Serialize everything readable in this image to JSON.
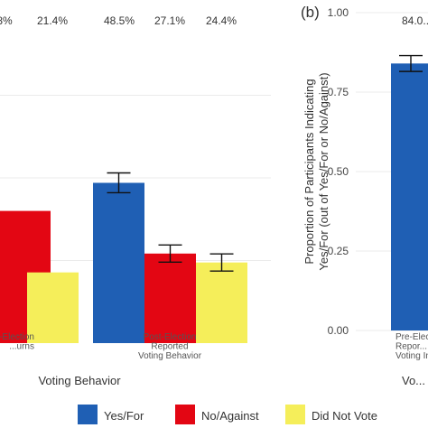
{
  "panel_b_tag": "(b)",
  "chart_data": [
    {
      "type": "bar",
      "panel": "a",
      "xlabel": "Voting Behavior",
      "ylabel": "",
      "ylim": [
        0,
        1
      ],
      "groups": [
        {
          "label_lines": [
            "...-Election",
            "...urns"
          ],
          "top_labels": [
            "...8%",
            "21.4%"
          ],
          "bars": [
            {
              "series": "No/Against",
              "value": 0.4
            },
            {
              "series": "Did Not Vote",
              "value": 0.214
            }
          ]
        },
        {
          "label_lines": [
            "Post-Election",
            "Reported",
            "Voting Behavior"
          ],
          "top_labels": [
            "48.5%",
            "27.1%",
            "24.4%"
          ],
          "bars": [
            {
              "series": "Yes/For",
              "value": 0.485,
              "err_low": 0.455,
              "err_high": 0.515
            },
            {
              "series": "No/Against",
              "value": 0.271,
              "err_low": 0.245,
              "err_high": 0.297
            },
            {
              "series": "Did Not Vote",
              "value": 0.244,
              "err_low": 0.218,
              "err_high": 0.27
            }
          ]
        }
      ]
    },
    {
      "type": "bar",
      "panel": "b",
      "ylabel_lines": [
        "Proportion of Participants Indicating",
        "Yes/For (out of Yes/For or No/Against)"
      ],
      "xlabel": "Vo...",
      "ylim": [
        0,
        1
      ],
      "yticks": [
        "0.00",
        "0.25",
        "0.50",
        "0.75",
        "1.00"
      ],
      "tick_values": [
        0,
        0.25,
        0.5,
        0.75,
        1.0
      ],
      "bars": [
        {
          "label_lines": [
            "Pre-Elec...",
            "Repor...",
            "Voting Int..."
          ],
          "value": 0.84,
          "err_low": 0.815,
          "err_high": 0.865,
          "top_label": "84.0..."
        }
      ]
    }
  ],
  "legend": [
    {
      "name": "Yes/For",
      "color": "#1f5fb4"
    },
    {
      "name": "No/Against",
      "color": "#e30613"
    },
    {
      "name": "Did Not Vote",
      "color": "#f5ee5a"
    }
  ],
  "colors": {
    "Yes/For": "#1f5fb4",
    "No/Against": "#e30613",
    "Did Not Vote": "#f5ee5a"
  }
}
